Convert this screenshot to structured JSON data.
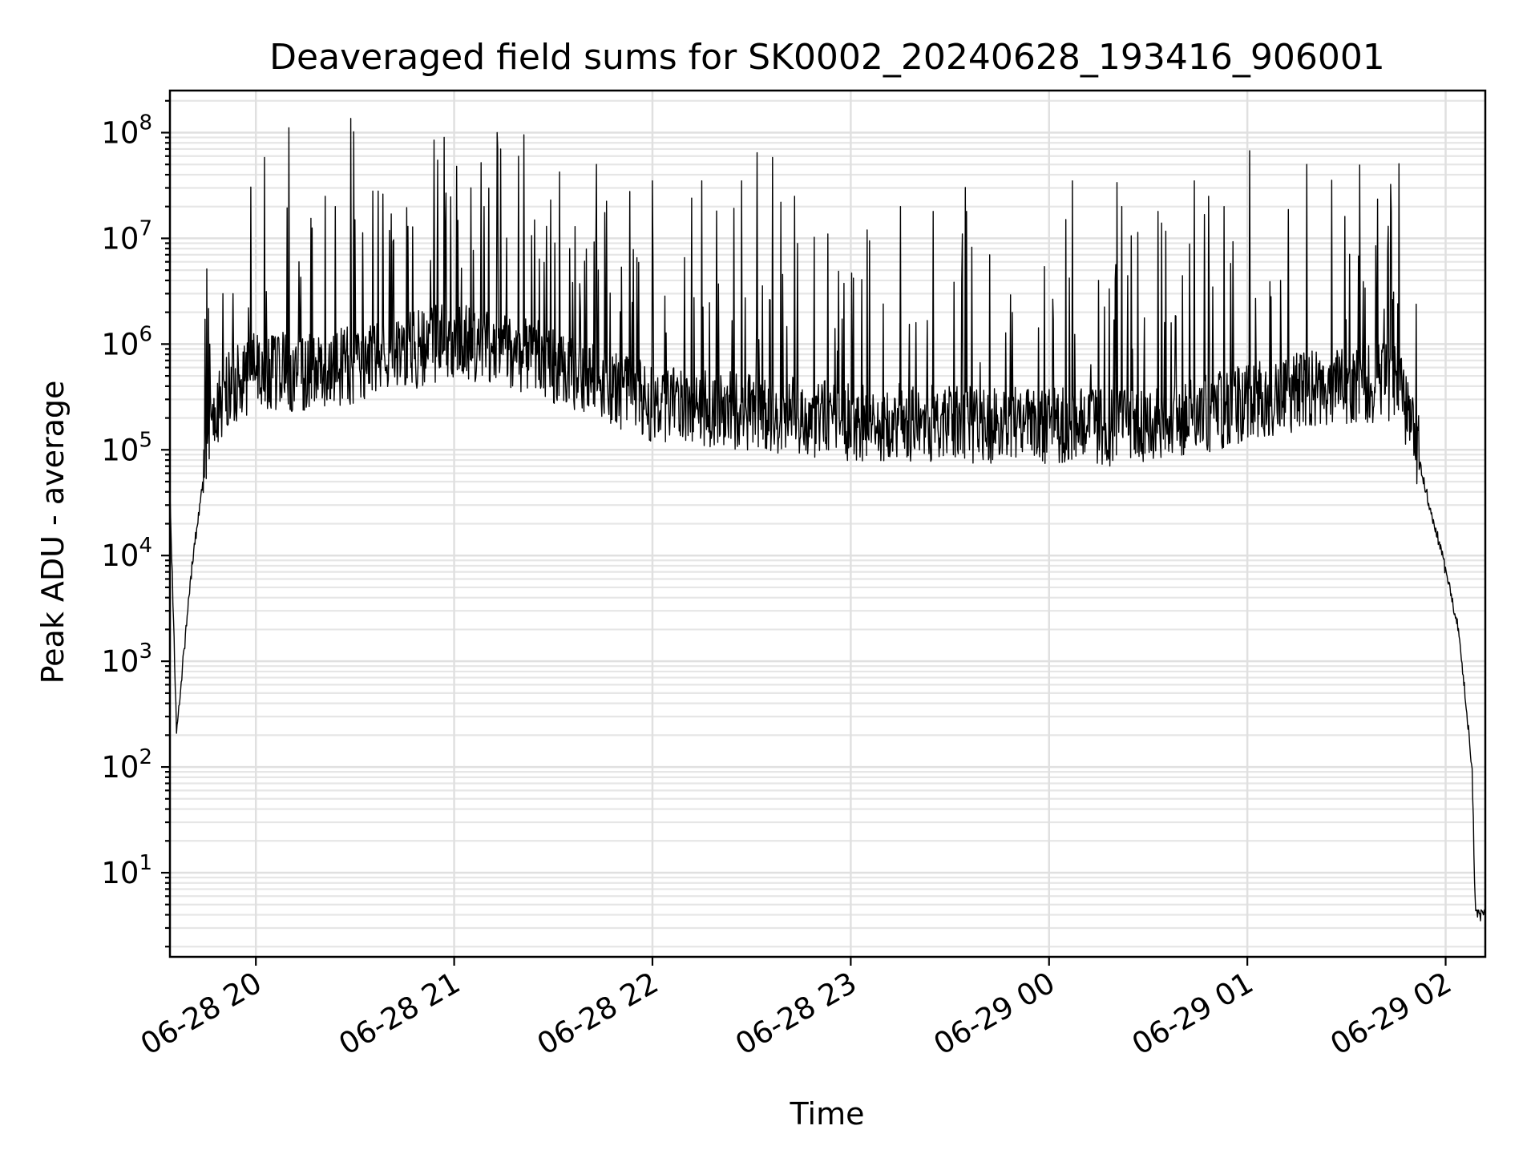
{
  "chart_data": {
    "type": "line",
    "title": "Deaveraged field sums for SK0002_20240628_193416_906001",
    "xlabel": "Time",
    "ylabel": "Peak ADU - average",
    "yscale": "log",
    "xlim": [
      "2024-06-28 19:34",
      "2024-06-29 02:12"
    ],
    "ylim": [
      1.6,
      250000000
    ],
    "xticks": [
      {
        "x": "2024-06-28 20:00",
        "label": "06-28 20"
      },
      {
        "x": "2024-06-28 21:00",
        "label": "06-28 21"
      },
      {
        "x": "2024-06-28 22:00",
        "label": "06-28 22"
      },
      {
        "x": "2024-06-28 23:00",
        "label": "06-28 23"
      },
      {
        "x": "2024-06-29 00:00",
        "label": "06-29 00"
      },
      {
        "x": "2024-06-29 01:00",
        "label": "06-29 01"
      },
      {
        "x": "2024-06-29 02:00",
        "label": "06-29 02"
      }
    ],
    "yticks": [
      {
        "base": "10",
        "exp": "1"
      },
      {
        "base": "10",
        "exp": "2"
      },
      {
        "base": "10",
        "exp": "3"
      },
      {
        "base": "10",
        "exp": "4"
      },
      {
        "base": "10",
        "exp": "5"
      },
      {
        "base": "10",
        "exp": "6"
      },
      {
        "base": "10",
        "exp": "7"
      },
      {
        "base": "10",
        "exp": "8"
      }
    ],
    "grid": true,
    "series_color": "#000000",
    "envelope": [
      {
        "x": "2024-06-28 19:34",
        "y": 40000
      },
      {
        "x": "2024-06-28 19:36",
        "y": 220
      },
      {
        "x": "2024-06-28 19:38",
        "y": 1000
      },
      {
        "x": "2024-06-28 19:41",
        "y": 10000
      },
      {
        "x": "2024-06-28 19:46",
        "y": 140000
      },
      {
        "x": "2024-06-28 19:50",
        "y": 300000
      },
      {
        "x": "2024-06-28 20:00",
        "y": 500000
      },
      {
        "x": "2024-06-28 20:20",
        "y": 500000
      },
      {
        "x": "2024-06-28 20:40",
        "y": 700000
      },
      {
        "x": "2024-06-28 21:00",
        "y": 1000000
      },
      {
        "x": "2024-06-28 21:30",
        "y": 600000
      },
      {
        "x": "2024-06-28 22:00",
        "y": 250000
      },
      {
        "x": "2024-06-28 23:00",
        "y": 170000
      },
      {
        "x": "2024-06-29 00:00",
        "y": 150000
      },
      {
        "x": "2024-06-29 00:30",
        "y": 150000
      },
      {
        "x": "2024-06-29 01:00",
        "y": 250000
      },
      {
        "x": "2024-06-29 01:20",
        "y": 350000
      },
      {
        "x": "2024-06-29 01:45",
        "y": 400000
      },
      {
        "x": "2024-06-29 01:50",
        "y": 150000
      },
      {
        "x": "2024-06-29 01:55",
        "y": 30000
      },
      {
        "x": "2024-06-29 01:59",
        "y": 10000
      },
      {
        "x": "2024-06-29 02:04",
        "y": 2000
      },
      {
        "x": "2024-06-29 02:08",
        "y": 100
      },
      {
        "x": "2024-06-29 02:09",
        "y": 4
      },
      {
        "x": "2024-06-29 02:12",
        "y": 4
      }
    ],
    "peaks": [
      {
        "x": "2024-06-28 19:46",
        "y": 1000000
      },
      {
        "x": "2024-06-28 19:50",
        "y": 3000000
      },
      {
        "x": "2024-06-28 19:53",
        "y": 3000000
      },
      {
        "x": "2024-06-28 20:13",
        "y": 6000000
      },
      {
        "x": "2024-06-28 20:21",
        "y": 25000000
      },
      {
        "x": "2024-06-28 20:24",
        "y": 20000000
      },
      {
        "x": "2024-06-28 20:30",
        "y": 15000000
      },
      {
        "x": "2024-06-28 20:37",
        "y": 28000000
      },
      {
        "x": "2024-06-28 20:41",
        "y": 17000000
      },
      {
        "x": "2024-06-28 20:46",
        "y": 13000000
      },
      {
        "x": "2024-06-28 20:55",
        "y": 55000000
      },
      {
        "x": "2024-06-28 20:57",
        "y": 90000000
      },
      {
        "x": "2024-06-28 21:05",
        "y": 30000000
      },
      {
        "x": "2024-06-28 21:09",
        "y": 20000000
      },
      {
        "x": "2024-06-28 21:13",
        "y": 100000000
      },
      {
        "x": "2024-06-28 21:14",
        "y": 70000000
      },
      {
        "x": "2024-06-28 21:28",
        "y": 13000000
      },
      {
        "x": "2024-06-28 21:35",
        "y": 8000000
      },
      {
        "x": "2024-06-28 21:43",
        "y": 50000000
      },
      {
        "x": "2024-06-28 22:00",
        "y": 35000000
      },
      {
        "x": "2024-06-28 22:15",
        "y": 35000000
      },
      {
        "x": "2024-06-28 22:27",
        "y": 35000000
      },
      {
        "x": "2024-06-28 22:43",
        "y": 25000000
      },
      {
        "x": "2024-06-28 23:05",
        "y": 12000000
      },
      {
        "x": "2024-06-28 23:15",
        "y": 20000000
      },
      {
        "x": "2024-06-28 23:25",
        "y": 18000000
      },
      {
        "x": "2024-06-28 23:35",
        "y": 18000000
      },
      {
        "x": "2024-06-28 23:42",
        "y": 7000000
      },
      {
        "x": "2024-06-29 00:07",
        "y": 35000000
      },
      {
        "x": "2024-06-29 00:15",
        "y": 4000000
      },
      {
        "x": "2024-06-29 00:22",
        "y": 20000000
      },
      {
        "x": "2024-06-29 00:33",
        "y": 18000000
      },
      {
        "x": "2024-06-29 00:44",
        "y": 35000000
      },
      {
        "x": "2024-06-29 00:53",
        "y": 20000000
      },
      {
        "x": "2024-06-29 01:10",
        "y": 4000000
      },
      {
        "x": "2024-06-29 01:18",
        "y": 50000000
      },
      {
        "x": "2024-06-29 01:39",
        "y": 1700000
      }
    ]
  }
}
